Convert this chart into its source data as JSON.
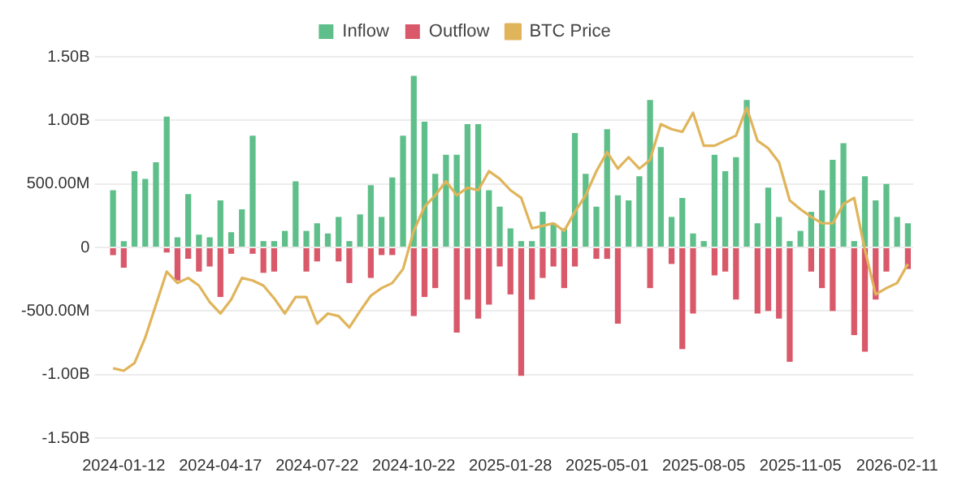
{
  "chart_data": {
    "type": "bar",
    "stacked": true,
    "grid": "y",
    "legend": "top",
    "categories": [
      null,
      "2024-01-12",
      null,
      null,
      null,
      null,
      null,
      null,
      null,
      null,
      "2024-04-17",
      null,
      null,
      null,
      null,
      null,
      null,
      null,
      null,
      "2024-07-22",
      null,
      null,
      null,
      null,
      null,
      null,
      null,
      null,
      "2024-10-22",
      null,
      null,
      null,
      null,
      null,
      null,
      null,
      null,
      "2025-01-28",
      null,
      null,
      null,
      null,
      null,
      null,
      null,
      null,
      "2025-05-01",
      null,
      null,
      null,
      null,
      null,
      null,
      null,
      null,
      "2025-08-05",
      null,
      null,
      null,
      null,
      null,
      null,
      null,
      null,
      "2025-11-05",
      null,
      null,
      null,
      null,
      null,
      null,
      null,
      null,
      "2026-02-11",
      null
    ],
    "ylim": [
      -1500000000,
      1500000000
    ],
    "yticks": [
      {
        "value": -1500000000,
        "label": "-1.50B"
      },
      {
        "value": -1000000000,
        "label": "-1.00B"
      },
      {
        "value": -500000000,
        "label": "-500.00M"
      },
      0,
      {
        "value": 500000000,
        "label": "500.00M"
      },
      {
        "value": 1000000000,
        "label": "1.00B"
      },
      {
        "value": 1500000000,
        "label": "1.50B"
      }
    ],
    "series": [
      {
        "name": "Inflow",
        "color": "#5fbf8a",
        "values": [
          450000000,
          50000000,
          600000000,
          540000000,
          670000000,
          1030000000,
          80000000,
          420000000,
          100000000,
          80000000,
          370000000,
          120000000,
          300000000,
          880000000,
          50000000,
          50000000,
          130000000,
          520000000,
          130000000,
          190000000,
          110000000,
          240000000,
          50000000,
          260000000,
          490000000,
          240000000,
          550000000,
          880000000,
          1350000000,
          990000000,
          580000000,
          730000000,
          730000000,
          970000000,
          970000000,
          450000000,
          320000000,
          150000000,
          50000000,
          50000000,
          280000000,
          190000000,
          150000000,
          900000000,
          580000000,
          320000000,
          930000000,
          410000000,
          370000000,
          560000000,
          1160000000,
          790000000,
          240000000,
          390000000,
          110000000,
          50000000,
          730000000,
          600000000,
          710000000,
          1160000000,
          190000000,
          470000000,
          240000000,
          50000000,
          130000000,
          280000000,
          450000000,
          690000000,
          820000000,
          50000000,
          560000000,
          370000000,
          500000000,
          240000000,
          190000000
        ]
      },
      {
        "name": "Outflow",
        "color": "#d9596a",
        "values": [
          -60000000,
          -160000000,
          0,
          0,
          0,
          -40000000,
          -260000000,
          -90000000,
          -190000000,
          -150000000,
          -390000000,
          -50000000,
          0,
          -50000000,
          -200000000,
          -190000000,
          0,
          0,
          -190000000,
          -110000000,
          0,
          -110000000,
          -280000000,
          0,
          -240000000,
          -60000000,
          -60000000,
          0,
          -540000000,
          -390000000,
          -320000000,
          0,
          -670000000,
          -410000000,
          -560000000,
          -450000000,
          -150000000,
          -370000000,
          -1010000000,
          -410000000,
          -240000000,
          -150000000,
          -320000000,
          -150000000,
          0,
          -90000000,
          -90000000,
          -600000000,
          0,
          0,
          -320000000,
          0,
          -130000000,
          -800000000,
          -520000000,
          0,
          -220000000,
          -190000000,
          -410000000,
          0,
          -520000000,
          -500000000,
          -560000000,
          -900000000,
          0,
          -190000000,
          -320000000,
          -500000000,
          0,
          -690000000,
          -820000000,
          -410000000,
          -190000000,
          0,
          -170000000
        ]
      },
      {
        "name": "BTC Price",
        "type": "line",
        "color": "#e0b45a",
        "values": [
          -950000000,
          -970000000,
          -910000000,
          -710000000,
          -450000000,
          -190000000,
          -280000000,
          -240000000,
          -300000000,
          -430000000,
          -520000000,
          -410000000,
          -240000000,
          -260000000,
          -300000000,
          -400000000,
          -520000000,
          -390000000,
          -390000000,
          -600000000,
          -520000000,
          -540000000,
          -630000000,
          -500000000,
          -380000000,
          -320000000,
          -280000000,
          -170000000,
          130000000,
          320000000,
          410000000,
          520000000,
          410000000,
          470000000,
          450000000,
          600000000,
          540000000,
          450000000,
          390000000,
          150000000,
          170000000,
          190000000,
          130000000,
          280000000,
          410000000,
          600000000,
          750000000,
          620000000,
          710000000,
          620000000,
          690000000,
          970000000,
          930000000,
          910000000,
          1060000000,
          800000000,
          800000000,
          840000000,
          880000000,
          1100000000,
          840000000,
          780000000,
          670000000,
          370000000,
          300000000,
          240000000,
          190000000,
          190000000,
          340000000,
          390000000,
          -20000000,
          -370000000,
          -320000000,
          -280000000,
          -130000000
        ]
      }
    ]
  }
}
